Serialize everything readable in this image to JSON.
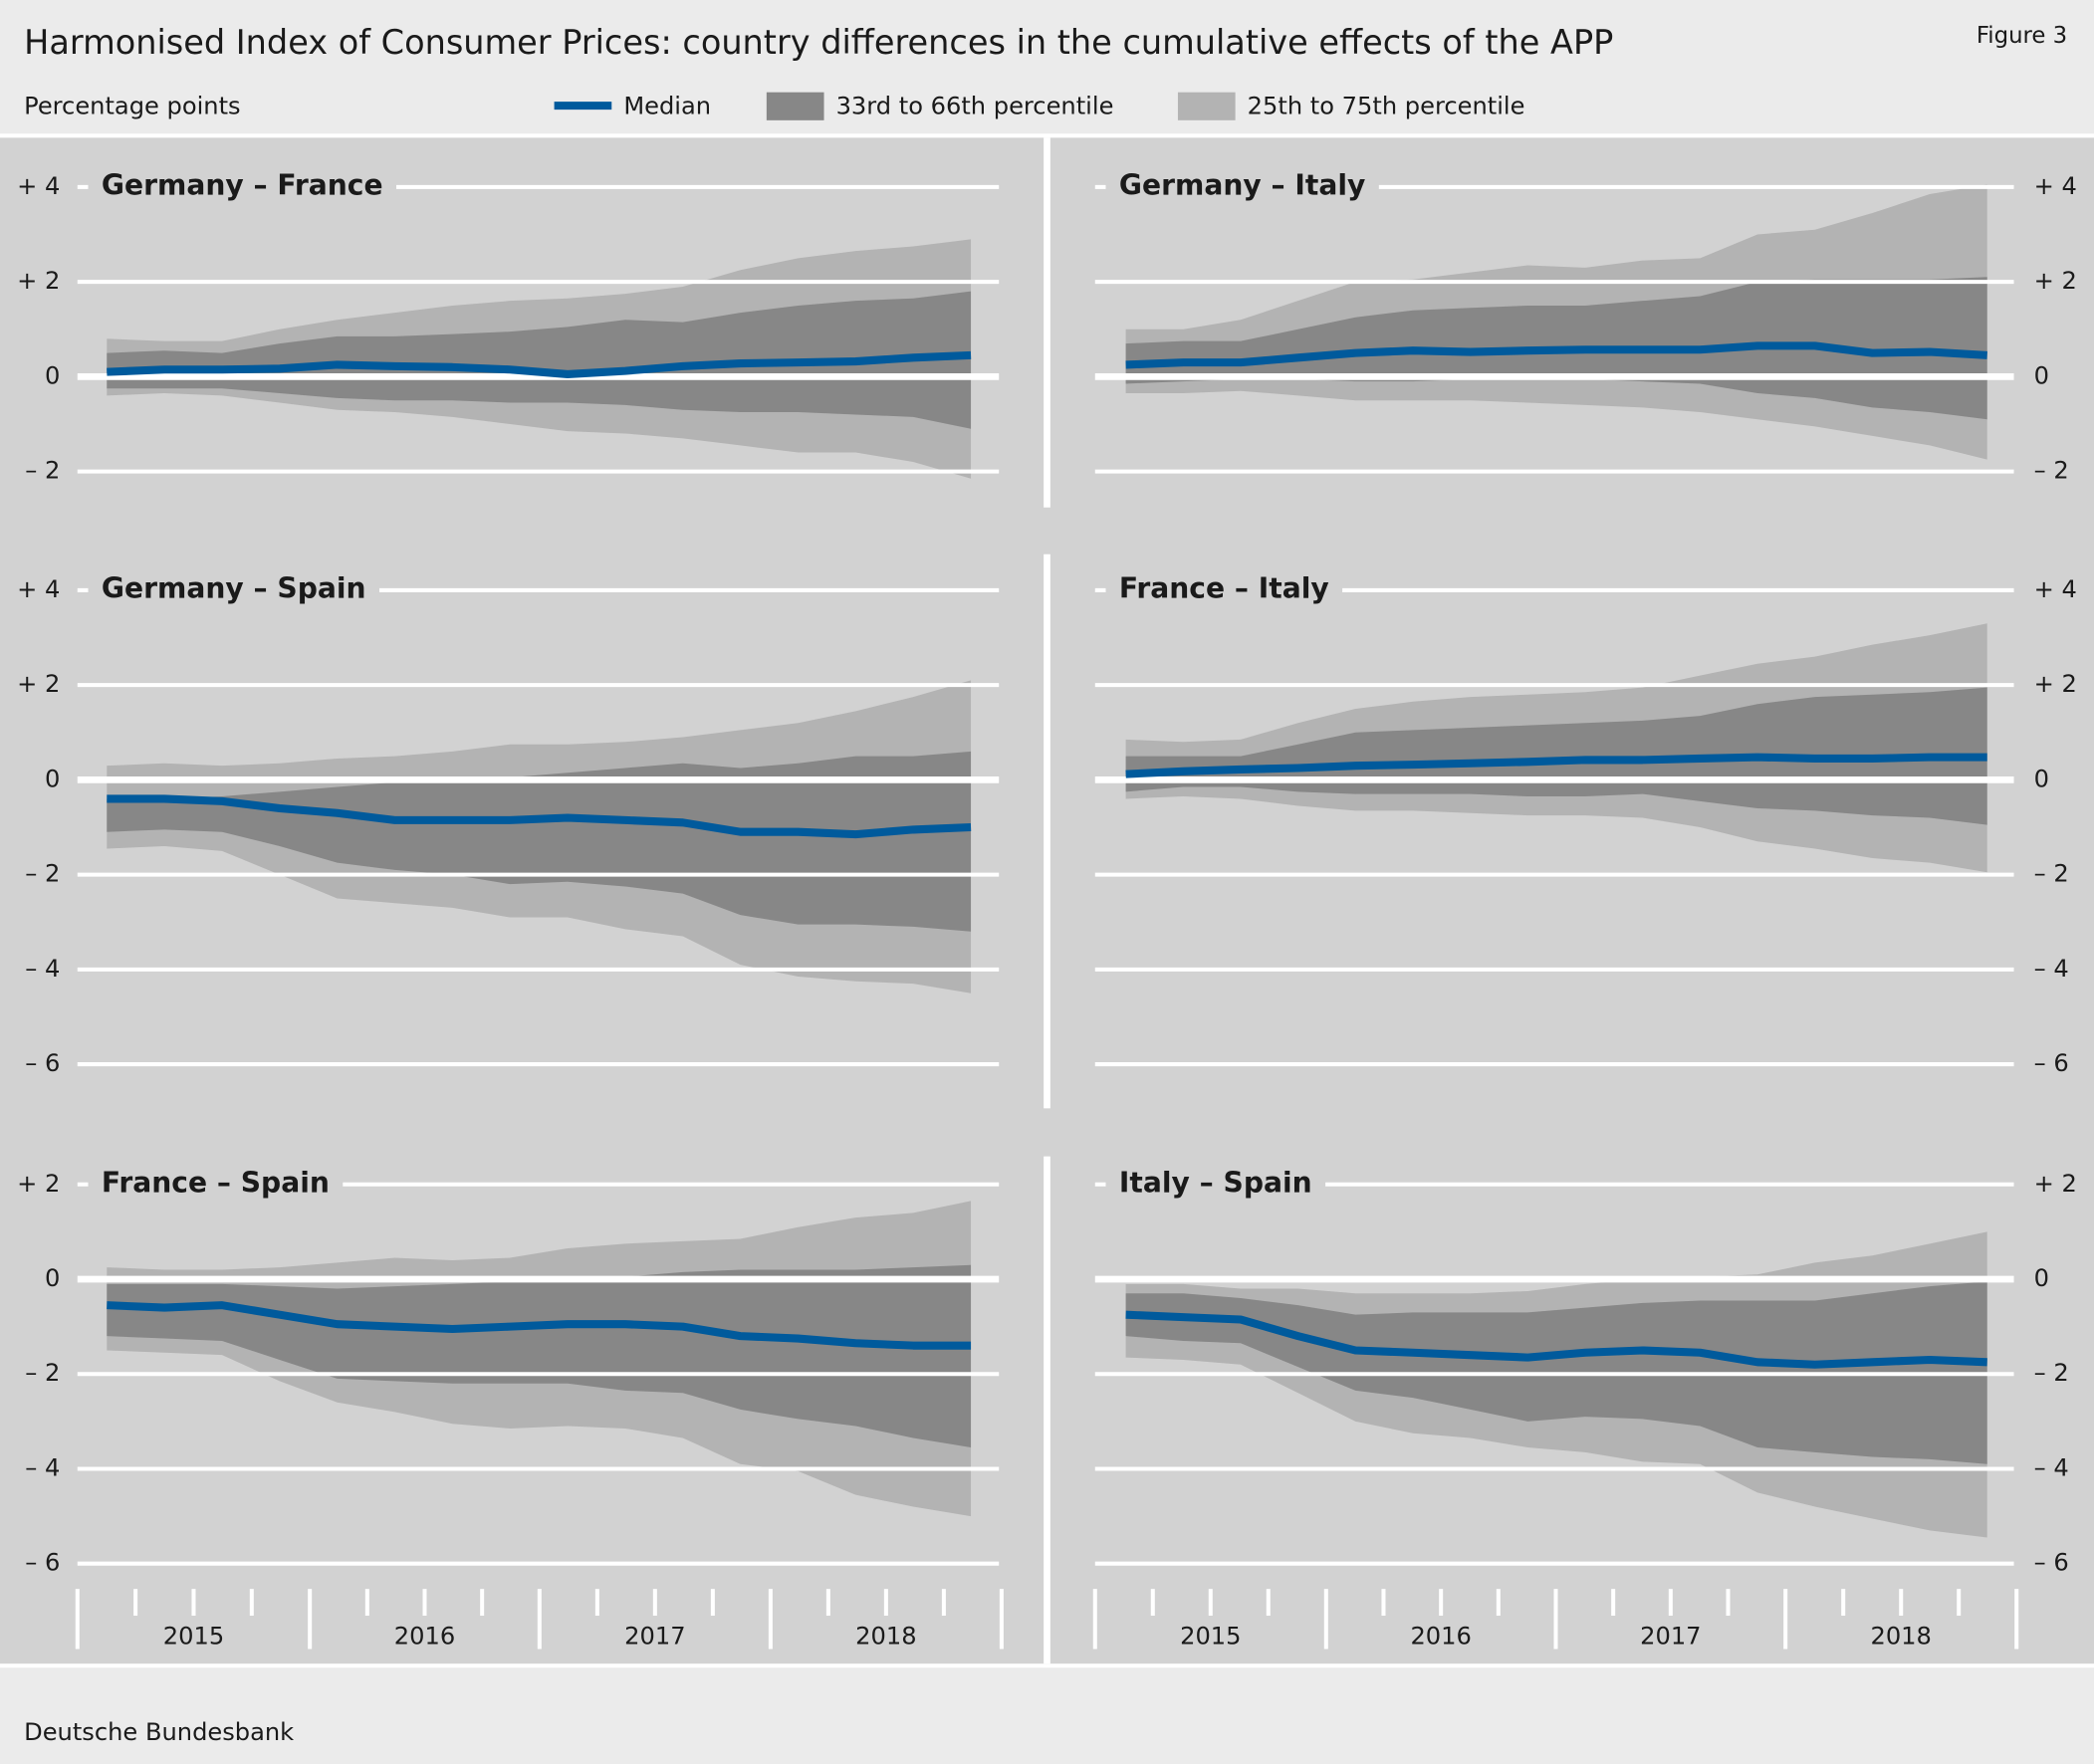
{
  "title": "Harmonised Index of Consumer Prices: country differences in the cumulative effects of the APP",
  "figure": "Figure 3",
  "subtitle": "Percentage points",
  "source": "Deutsche Bundesbank",
  "legend": [
    {
      "name": "Median",
      "color": "#005a9c"
    },
    {
      "name": "33rd to 66th percentile",
      "color": "#878787"
    },
    {
      "name": "25th to 75th percentile",
      "color": "#b3b3b3"
    }
  ],
  "years": [
    "2015",
    "2016",
    "2017",
    "2018"
  ],
  "chart_data": [
    {
      "type": "line",
      "title": "Germany – France",
      "ylim": [
        -2.6,
        4.6
      ],
      "yticks": [
        {
          "value": 4,
          "label": "+ 4"
        },
        {
          "value": 2,
          "label": "+ 2"
        },
        0,
        {
          "value": -2,
          "label": "– 2"
        }
      ],
      "median": [
        0.1,
        0.15,
        0.15,
        0.17,
        0.25,
        0.22,
        0.2,
        0.15,
        0.05,
        0.12,
        0.22,
        0.28,
        0.3,
        0.32,
        0.4,
        0.45
      ],
      "inner": {
        "upper": [
          0.5,
          0.55,
          0.5,
          0.7,
          0.85,
          0.85,
          0.9,
          0.95,
          1.05,
          1.2,
          1.15,
          1.35,
          1.5,
          1.6,
          1.65,
          1.8
        ],
        "lower": [
          -0.25,
          -0.25,
          -0.25,
          -0.35,
          -0.45,
          -0.5,
          -0.5,
          -0.55,
          -0.55,
          -0.6,
          -0.7,
          -0.75,
          -0.75,
          -0.8,
          -0.85,
          -1.1
        ]
      },
      "outer": {
        "upper": [
          0.8,
          0.75,
          0.75,
          1.0,
          1.2,
          1.35,
          1.5,
          1.6,
          1.65,
          1.75,
          1.9,
          2.25,
          2.5,
          2.65,
          2.75,
          2.9
        ],
        "lower": [
          -0.4,
          -0.35,
          -0.4,
          -0.55,
          -0.7,
          -0.75,
          -0.85,
          -1.0,
          -1.15,
          -1.2,
          -1.3,
          -1.45,
          -1.6,
          -1.6,
          -1.8,
          -2.15
        ]
      }
    },
    {
      "type": "line",
      "title": "Germany – Italy",
      "ylim": [
        -2.6,
        4.6
      ],
      "yticks": [
        {
          "value": 4,
          "label": "+ 4"
        },
        {
          "value": 2,
          "label": "+ 2"
        },
        0,
        {
          "value": -2,
          "label": "– 2"
        }
      ],
      "median": [
        0.25,
        0.3,
        0.3,
        0.4,
        0.5,
        0.55,
        0.52,
        0.55,
        0.57,
        0.57,
        0.57,
        0.65,
        0.65,
        0.5,
        0.52,
        0.45
      ],
      "inner": {
        "upper": [
          0.7,
          0.75,
          0.75,
          1.0,
          1.25,
          1.4,
          1.45,
          1.5,
          1.5,
          1.6,
          1.7,
          2.0,
          2.05,
          2.05,
          2.05,
          2.1
        ],
        "lower": [
          -0.15,
          -0.1,
          -0.05,
          -0.05,
          -0.1,
          -0.1,
          -0.05,
          -0.05,
          -0.05,
          -0.1,
          -0.15,
          -0.35,
          -0.45,
          -0.65,
          -0.75,
          -0.9
        ]
      },
      "outer": {
        "upper": [
          1.0,
          1.0,
          1.2,
          1.6,
          2.0,
          2.05,
          2.2,
          2.35,
          2.3,
          2.45,
          2.5,
          3.0,
          3.1,
          3.45,
          3.85,
          4.05
        ],
        "lower": [
          -0.35,
          -0.35,
          -0.3,
          -0.4,
          -0.5,
          -0.5,
          -0.5,
          -0.55,
          -0.6,
          -0.65,
          -0.75,
          -0.9,
          -1.05,
          -1.25,
          -1.45,
          -1.75
        ]
      }
    },
    {
      "type": "line",
      "title": "Germany – Spain",
      "ylim": [
        -6.6,
        4.6
      ],
      "yticks": [
        {
          "value": 4,
          "label": "+ 4"
        },
        {
          "value": 2,
          "label": "+ 2"
        },
        0,
        {
          "value": -2,
          "label": "– 2"
        },
        {
          "value": -4,
          "label": "– 4"
        },
        {
          "value": -6,
          "label": "– 6"
        }
      ],
      "median": [
        -0.4,
        -0.4,
        -0.45,
        -0.6,
        -0.7,
        -0.85,
        -0.85,
        -0.85,
        -0.8,
        -0.85,
        -0.9,
        -1.1,
        -1.1,
        -1.15,
        -1.05,
        -1.0
      ],
      "inner": {
        "upper": [
          -0.4,
          -0.4,
          -0.35,
          -0.25,
          -0.15,
          -0.05,
          0.0,
          0.05,
          0.15,
          0.25,
          0.35,
          0.25,
          0.35,
          0.5,
          0.5,
          0.6
        ],
        "lower": [
          -1.1,
          -1.05,
          -1.1,
          -1.4,
          -1.75,
          -1.9,
          -2.0,
          -2.2,
          -2.15,
          -2.25,
          -2.4,
          -2.85,
          -3.05,
          -3.05,
          -3.1,
          -3.2
        ]
      },
      "outer": {
        "upper": [
          0.3,
          0.35,
          0.3,
          0.35,
          0.45,
          0.5,
          0.6,
          0.75,
          0.75,
          0.8,
          0.9,
          1.05,
          1.2,
          1.45,
          1.75,
          2.1
        ],
        "lower": [
          -1.45,
          -1.4,
          -1.5,
          -2.0,
          -2.5,
          -2.6,
          -2.7,
          -2.9,
          -2.9,
          -3.15,
          -3.3,
          -3.9,
          -4.15,
          -4.25,
          -4.3,
          -4.5
        ]
      }
    },
    {
      "type": "line",
      "title": "France – Italy",
      "ylim": [
        -6.6,
        4.6
      ],
      "yticks": [
        {
          "value": 4,
          "label": "+ 4"
        },
        {
          "value": 2,
          "label": "+ 2"
        },
        0,
        {
          "value": -2,
          "label": "– 2"
        },
        {
          "value": -4,
          "label": "– 4"
        },
        {
          "value": -6,
          "label": "– 6"
        }
      ],
      "median": [
        0.12,
        0.18,
        0.22,
        0.25,
        0.3,
        0.32,
        0.35,
        0.38,
        0.42,
        0.42,
        0.45,
        0.48,
        0.45,
        0.45,
        0.48,
        0.48
      ],
      "inner": {
        "upper": [
          0.5,
          0.5,
          0.5,
          0.75,
          1.0,
          1.05,
          1.1,
          1.15,
          1.2,
          1.25,
          1.35,
          1.6,
          1.75,
          1.8,
          1.85,
          1.95
        ],
        "lower": [
          -0.25,
          -0.15,
          -0.15,
          -0.25,
          -0.3,
          -0.3,
          -0.3,
          -0.35,
          -0.35,
          -0.3,
          -0.45,
          -0.6,
          -0.65,
          -0.75,
          -0.8,
          -0.95
        ]
      },
      "outer": {
        "upper": [
          0.85,
          0.8,
          0.85,
          1.2,
          1.5,
          1.65,
          1.75,
          1.8,
          1.85,
          1.95,
          2.2,
          2.45,
          2.6,
          2.85,
          3.05,
          3.3
        ],
        "lower": [
          -0.4,
          -0.35,
          -0.4,
          -0.55,
          -0.65,
          -0.65,
          -0.7,
          -0.75,
          -0.75,
          -0.8,
          -1.0,
          -1.3,
          -1.45,
          -1.65,
          -1.75,
          -1.95
        ]
      }
    },
    {
      "type": "line",
      "title": "France – Spain",
      "ylim": [
        -6.6,
        2.6
      ],
      "yticks": [
        {
          "value": 2,
          "label": "+ 2"
        },
        0,
        {
          "value": -2,
          "label": "– 2"
        },
        {
          "value": -4,
          "label": "– 4"
        },
        {
          "value": -6,
          "label": "– 6"
        }
      ],
      "median": [
        -0.55,
        -0.6,
        -0.55,
        -0.75,
        -0.95,
        -1.0,
        -1.05,
        -1.0,
        -0.95,
        -0.95,
        -1.0,
        -1.2,
        -1.25,
        -1.35,
        -1.4,
        -1.4
      ],
      "inner": {
        "upper": [
          -0.1,
          -0.1,
          -0.1,
          -0.15,
          -0.2,
          -0.15,
          -0.1,
          -0.05,
          0.0,
          0.05,
          0.15,
          0.2,
          0.2,
          0.2,
          0.25,
          0.3
        ],
        "lower": [
          -1.2,
          -1.25,
          -1.3,
          -1.7,
          -2.1,
          -2.15,
          -2.2,
          -2.2,
          -2.2,
          -2.35,
          -2.4,
          -2.75,
          -2.95,
          -3.1,
          -3.35,
          -3.55
        ]
      },
      "outer": {
        "upper": [
          0.25,
          0.2,
          0.2,
          0.25,
          0.35,
          0.45,
          0.4,
          0.45,
          0.65,
          0.75,
          0.8,
          0.85,
          1.1,
          1.3,
          1.4,
          1.65
        ],
        "lower": [
          -1.5,
          -1.55,
          -1.6,
          -2.15,
          -2.6,
          -2.8,
          -3.05,
          -3.15,
          -3.1,
          -3.15,
          -3.35,
          -3.9,
          -4.05,
          -4.55,
          -4.8,
          -5.0
        ]
      }
    },
    {
      "type": "line",
      "title": "Italy – Spain",
      "ylim": [
        -6.6,
        2.6
      ],
      "yticks": [
        {
          "value": 2,
          "label": "+ 2"
        },
        0,
        {
          "value": -2,
          "label": "– 2"
        },
        {
          "value": -4,
          "label": "– 4"
        },
        {
          "value": -6,
          "label": "– 6"
        }
      ],
      "median": [
        -0.75,
        -0.8,
        -0.85,
        -1.2,
        -1.5,
        -1.55,
        -1.6,
        -1.65,
        -1.55,
        -1.5,
        -1.55,
        -1.75,
        -1.8,
        -1.75,
        -1.7,
        -1.75
      ],
      "inner": {
        "upper": [
          -0.3,
          -0.3,
          -0.4,
          -0.55,
          -0.75,
          -0.7,
          -0.7,
          -0.7,
          -0.6,
          -0.5,
          -0.45,
          -0.45,
          -0.45,
          -0.3,
          -0.15,
          -0.05
        ],
        "lower": [
          -1.2,
          -1.3,
          -1.35,
          -1.85,
          -2.35,
          -2.5,
          -2.75,
          -3.0,
          -2.9,
          -2.95,
          -3.1,
          -3.55,
          -3.65,
          -3.75,
          -3.8,
          -3.9
        ]
      },
      "outer": {
        "upper": [
          -0.1,
          -0.1,
          -0.2,
          -0.2,
          -0.3,
          -0.3,
          -0.3,
          -0.25,
          -0.1,
          0.0,
          0.05,
          0.1,
          0.35,
          0.5,
          0.75,
          1.0
        ],
        "lower": [
          -1.65,
          -1.7,
          -1.8,
          -2.4,
          -3.0,
          -3.25,
          -3.35,
          -3.55,
          -3.65,
          -3.85,
          -3.9,
          -4.5,
          -4.8,
          -5.05,
          -5.3,
          -5.45
        ]
      }
    }
  ]
}
